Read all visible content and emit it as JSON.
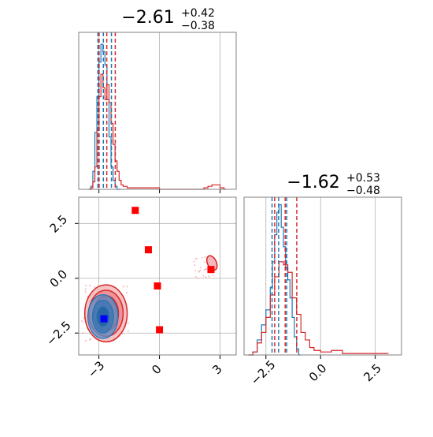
{
  "colors": {
    "blue": "#1f77b4",
    "red": "#d62728",
    "red_point": "#ff0000",
    "blue_point": "#0000ff",
    "grid": "#b0b0b0",
    "axis": "#808080"
  },
  "chart_data": [
    {
      "type": "line",
      "panel": "histogram-param-1",
      "title": {
        "main": "−2.61",
        "sup": "+0.42",
        "sub": "−0.38"
      },
      "xlim": [
        -4.0,
        3.8
      ],
      "ylim": [
        0,
        1.05
      ],
      "grid": true,
      "y_ticks_shown": false,
      "x_tick_values": [
        -3,
        0,
        3
      ],
      "x_tick_labels_shown": false,
      "quantile_lines": {
        "blue": [
          -3.05,
          -2.78,
          -2.38
        ],
        "red": [
          -2.99,
          -2.61,
          -2.19
        ]
      },
      "series": [
        {
          "color": "blue",
          "x": [
            -3.5,
            -3.4,
            -3.3,
            -3.2,
            -3.1,
            -3.0,
            -2.9,
            -2.8,
            -2.7,
            -2.6,
            -2.5,
            -2.4,
            -2.3,
            -2.2,
            -2.1,
            -2.0
          ],
          "y": [
            0.0,
            0.02,
            0.12,
            0.38,
            0.62,
            0.85,
            0.97,
            0.92,
            0.83,
            0.6,
            0.35,
            0.15,
            0.06,
            0.02,
            0.0,
            0.0
          ]
        },
        {
          "color": "red",
          "x": [
            -3.5,
            -3.4,
            -3.3,
            -3.2,
            -3.1,
            -3.0,
            -2.9,
            -2.8,
            -2.7,
            -2.6,
            -2.5,
            -2.4,
            -2.3,
            -2.2,
            -2.1,
            -2.0,
            -1.9,
            -1.8,
            -1.6,
            -1.4,
            -1.0,
            0.0,
            1.0,
            2.0,
            2.2,
            2.4,
            2.6,
            2.8,
            3.0,
            3.2
          ],
          "y": [
            0.0,
            0.01,
            0.05,
            0.15,
            0.4,
            0.62,
            0.77,
            0.68,
            0.6,
            0.7,
            0.58,
            0.44,
            0.3,
            0.19,
            0.12,
            0.06,
            0.03,
            0.02,
            0.01,
            0.01,
            0.01,
            0.0,
            0.0,
            0.0,
            0.01,
            0.02,
            0.03,
            0.03,
            0.01,
            0.0
          ]
        }
      ]
    },
    {
      "type": "scatter",
      "panel": "joint-2d",
      "xlim": [
        -4.0,
        3.8
      ],
      "ylim": [
        -3.5,
        3.7
      ],
      "grid": true,
      "x_tick_labels": [
        "−3",
        "0",
        "3"
      ],
      "x_tick_values": [
        -3,
        0,
        3
      ],
      "y_tick_labels": [
        "−2.5",
        "0.0",
        "2.5"
      ],
      "y_tick_values": [
        -2.5,
        0.0,
        2.5
      ],
      "markers": {
        "red": [
          [
            -1.2,
            3.1
          ],
          [
            -0.55,
            1.3
          ],
          [
            -0.1,
            -0.35
          ],
          [
            0.0,
            -2.35
          ],
          [
            2.55,
            0.4
          ]
        ],
        "blue": [
          [
            -2.75,
            -1.85
          ]
        ]
      },
      "contours": {
        "red": {
          "center": [
            -2.65,
            -1.6
          ],
          "radii": [
            [
              1.05,
              1.3
            ],
            [
              0.85,
              1.05
            ],
            [
              0.62,
              0.8
            ]
          ]
        },
        "blue": {
          "center": [
            -2.8,
            -1.75
          ],
          "radii": [
            [
              0.75,
              1.0
            ],
            [
              0.52,
              0.75
            ],
            [
              0.3,
              0.45
            ]
          ]
        },
        "red_secondary": {
          "center": [
            2.6,
            0.7
          ],
          "radii": [
            [
              0.22,
              0.35
            ]
          ]
        }
      }
    },
    {
      "type": "line",
      "panel": "histogram-param-2",
      "title": {
        "main": "−1.62",
        "sup": "+0.53",
        "sub": "−0.48"
      },
      "xlim": [
        -3.5,
        3.7
      ],
      "ylim": [
        0,
        1.05
      ],
      "grid": true,
      "y_ticks_shown": false,
      "x_tick_labels": [
        "−2.5",
        "0.0",
        "2.5"
      ],
      "x_tick_values": [
        -2.5,
        0.0,
        2.5
      ],
      "quantile_lines": {
        "blue": [
          -2.22,
          -1.92,
          -1.55
        ],
        "red": [
          -2.1,
          -1.62,
          -1.09
        ]
      },
      "series": [
        {
          "color": "blue",
          "x": [
            -3.3,
            -3.1,
            -2.9,
            -2.7,
            -2.5,
            -2.3,
            -2.2,
            -2.1,
            -2.0,
            -1.9,
            -1.8,
            -1.7,
            -1.6,
            -1.5,
            -1.4,
            -1.3,
            -1.2,
            -1.1,
            -1.0
          ],
          "y": [
            0.0,
            0.02,
            0.1,
            0.2,
            0.3,
            0.45,
            0.62,
            0.8,
            0.95,
            1.0,
            0.85,
            0.72,
            0.58,
            0.5,
            0.38,
            0.25,
            0.12,
            0.04,
            0.0
          ]
        },
        {
          "color": "red",
          "x": [
            -3.3,
            -3.1,
            -2.9,
            -2.7,
            -2.5,
            -2.3,
            -2.1,
            -1.9,
            -1.7,
            -1.5,
            -1.3,
            -1.1,
            -0.9,
            -0.7,
            -0.5,
            -0.3,
            0.0,
            0.5,
            1.0,
            2.0,
            3.0
          ],
          "y": [
            0.0,
            0.02,
            0.08,
            0.15,
            0.25,
            0.4,
            0.52,
            0.62,
            0.6,
            0.55,
            0.38,
            0.27,
            0.15,
            0.1,
            0.05,
            0.03,
            0.02,
            0.03,
            0.01,
            0.01,
            0.01
          ]
        }
      ]
    }
  ]
}
